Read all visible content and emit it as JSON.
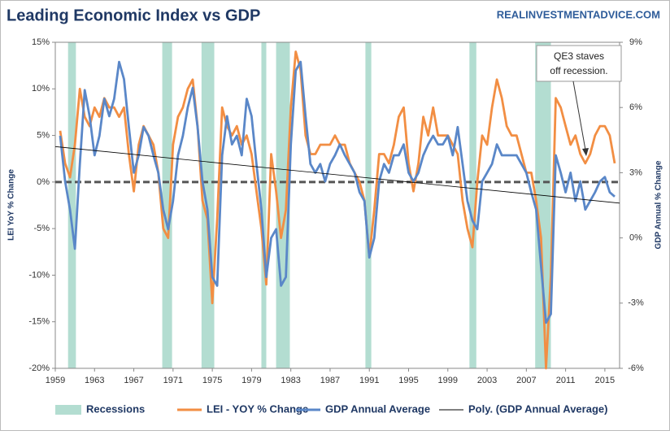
{
  "chart_data": {
    "type": "line",
    "title": "Leading Economic Index vs GDP",
    "source": "REALINVESTMENTADVICE.COM",
    "y_label": "LEI YoY % Change",
    "y2_label": "GDP Annual % Change",
    "xlim": [
      1959,
      2016.5
    ],
    "xticks": [
      1959,
      1963,
      1967,
      1971,
      1975,
      1979,
      1983,
      1987,
      1991,
      1995,
      1999,
      2003,
      2007,
      2011,
      2015
    ],
    "ylim": [
      -20,
      15
    ],
    "yticks": [
      {
        "value": -20,
        "label": "-20%"
      },
      {
        "value": -15,
        "label": "-15%"
      },
      {
        "value": -10,
        "label": "-10%"
      },
      {
        "value": -5,
        "label": "-5%"
      },
      {
        "value": 0,
        "label": "0%"
      },
      {
        "value": 5,
        "label": "5%"
      },
      {
        "value": 10,
        "label": "10%"
      },
      {
        "value": 15,
        "label": "15%"
      }
    ],
    "y2lim": [
      -6,
      9
    ],
    "y2ticks": [
      {
        "value": -6,
        "label": "-6%"
      },
      {
        "value": -3,
        "label": "-3%"
      },
      {
        "value": 0,
        "label": "0%"
      },
      {
        "value": 3,
        "label": "3%"
      },
      {
        "value": 6,
        "label": "6%"
      },
      {
        "value": 9,
        "label": "9%"
      }
    ],
    "grid": false,
    "reference_line": 0,
    "recessions": {
      "name": "Recessions",
      "color": "#b3ddd1",
      "periods": [
        [
          1960.3,
          1961.1
        ],
        [
          1969.9,
          1970.9
        ],
        [
          1973.9,
          1975.2
        ],
        [
          1980.0,
          1980.5
        ],
        [
          1981.5,
          1982.9
        ],
        [
          1990.6,
          1991.2
        ],
        [
          2001.2,
          2001.9
        ],
        [
          2007.9,
          2009.5
        ]
      ]
    },
    "x": [
      1959.5,
      1960,
      1960.5,
      1961,
      1961.5,
      1962,
      1962.5,
      1963,
      1963.5,
      1964,
      1964.5,
      1965,
      1965.5,
      1966,
      1966.5,
      1967,
      1967.5,
      1968,
      1968.5,
      1969,
      1969.5,
      1970,
      1970.5,
      1971,
      1971.5,
      1972,
      1972.5,
      1973,
      1973.5,
      1974,
      1974.5,
      1975,
      1975.5,
      1976,
      1976.5,
      1977,
      1977.5,
      1978,
      1978.5,
      1979,
      1979.5,
      1980,
      1980.5,
      1981,
      1981.5,
      1982,
      1982.5,
      1983,
      1983.5,
      1984,
      1984.5,
      1985,
      1985.5,
      1986,
      1986.5,
      1987,
      1987.5,
      1988,
      1988.5,
      1989,
      1989.5,
      1990,
      1990.5,
      1991,
      1991.5,
      1992,
      1992.5,
      1993,
      1993.5,
      1994,
      1994.5,
      1995,
      1995.5,
      1996,
      1996.5,
      1997,
      1997.5,
      1998,
      1998.5,
      1999,
      1999.5,
      2000,
      2000.5,
      2001,
      2001.5,
      2002,
      2002.5,
      2003,
      2003.5,
      2004,
      2004.5,
      2005,
      2005.5,
      2006,
      2006.5,
      2007,
      2007.5,
      2008,
      2008.5,
      2009,
      2009.5,
      2010,
      2010.5,
      2011,
      2011.5,
      2012,
      2012.5,
      2013,
      2013.5,
      2014,
      2014.5,
      2015,
      2015.5,
      2016
    ],
    "series": [
      {
        "name": "LEI - YOY % Change",
        "color": "#f28e43",
        "axis": "y",
        "values": [
          5.5,
          2,
          0.5,
          4,
          10,
          7,
          6,
          8,
          7,
          9,
          8,
          8,
          7,
          8,
          3,
          -1,
          4,
          6,
          5,
          4,
          1,
          -5,
          -6,
          4,
          7,
          8,
          10,
          11,
          6,
          -2,
          -4,
          -13,
          -4,
          8,
          6,
          5,
          6,
          4,
          5,
          3,
          -1,
          -5,
          -11,
          3,
          -1,
          -6,
          -3,
          8,
          14,
          12,
          5,
          3,
          3,
          4,
          4,
          4,
          5,
          4,
          4,
          2,
          1,
          0,
          -2,
          -8,
          -3,
          3,
          3,
          2,
          4,
          7,
          8,
          2,
          -1,
          2,
          7,
          5,
          8,
          5,
          5,
          5,
          4,
          3,
          -2,
          -5,
          -7,
          0,
          5,
          4,
          8,
          11,
          9,
          6,
          5,
          5,
          3,
          1,
          1,
          -2,
          -6,
          -20,
          -10,
          9,
          8,
          6,
          4,
          5,
          3,
          2,
          3,
          5,
          6,
          6,
          5,
          2
        ]
      },
      {
        "name": "GDP Annual Average",
        "color": "#5a87c8",
        "axis": "y2",
        "values": [
          4.7,
          2.6,
          1.3,
          -0.5,
          3.4,
          6.8,
          5.6,
          3.8,
          4.7,
          6.4,
          5.6,
          6.4,
          8.1,
          7.3,
          5.1,
          3.0,
          3.8,
          5.1,
          4.7,
          3.8,
          3.0,
          1.3,
          0.4,
          1.7,
          3.8,
          4.7,
          6.0,
          6.9,
          5.1,
          2.6,
          1.3,
          -1.8,
          -2.2,
          3.8,
          5.6,
          4.3,
          4.7,
          3.8,
          6.4,
          5.6,
          3.4,
          1.3,
          -1.8,
          0,
          0.4,
          -2.2,
          -1.8,
          4.3,
          7.7,
          8.1,
          5.6,
          3.4,
          3.0,
          3.4,
          2.6,
          3.4,
          3.8,
          4.3,
          3.8,
          3.4,
          3.0,
          2.1,
          1.7,
          -0.9,
          0,
          2.6,
          3.4,
          3.0,
          3.8,
          3.8,
          4.3,
          3.0,
          2.6,
          3.0,
          3.8,
          4.3,
          4.7,
          4.3,
          4.3,
          4.7,
          3.8,
          5.1,
          3.4,
          1.7,
          0.8,
          0.4,
          2.6,
          3.0,
          3.4,
          4.3,
          3.8,
          3.8,
          3.8,
          3.8,
          3.4,
          3.0,
          2.1,
          1.3,
          -1.3,
          -3.9,
          -3.5,
          3.8,
          3.0,
          2.1,
          3.0,
          1.7,
          2.6,
          1.3,
          1.7,
          2.1,
          2.6,
          2.8,
          2.1,
          1.9
        ]
      },
      {
        "name": "Poly. (GDP Annual Average)",
        "color": "#000000",
        "axis": "y2",
        "x": [
          1959,
          2016.5
        ],
        "values": [
          4.2,
          1.6
        ]
      }
    ],
    "annotation": [
      "QE3 staves",
      "off recession."
    ]
  }
}
